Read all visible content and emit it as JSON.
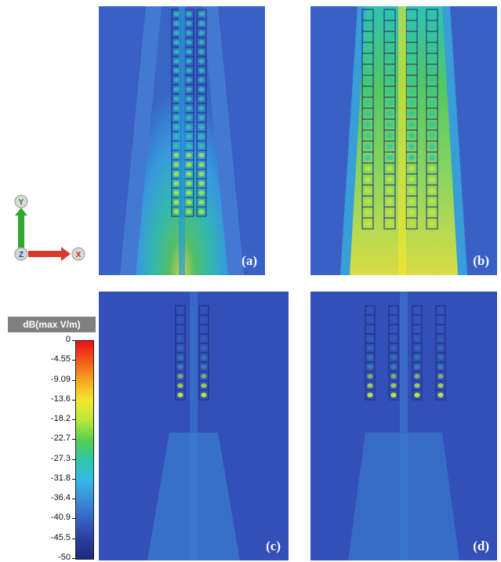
{
  "panels": [
    {
      "id": "a",
      "label": "(a)"
    },
    {
      "id": "b",
      "label": "(b)"
    },
    {
      "id": "c",
      "label": "(c)"
    },
    {
      "id": "d",
      "label": "(d)"
    }
  ],
  "axes": {
    "y_label": "Y",
    "z_label": "Z",
    "x_label": "X"
  },
  "legend": {
    "title": "dB(max V/m)",
    "ticks": [
      "0",
      "-4.55",
      "-9.09",
      "-13.6",
      "-18.2",
      "-22.7",
      "-27.3",
      "-31.8",
      "-36.4",
      "-40.9",
      "-45.5",
      "-50"
    ]
  },
  "colors": {
    "background_field": "#3355b8",
    "colormap": [
      "#e8101a",
      "#f25a1a",
      "#f5a620",
      "#f4e82a",
      "#b8e83a",
      "#57cf4e",
      "#2ec7a8",
      "#35b8e8",
      "#3a8fd8",
      "#3562c4",
      "#2b3f9e",
      "#1a2a80"
    ]
  }
}
